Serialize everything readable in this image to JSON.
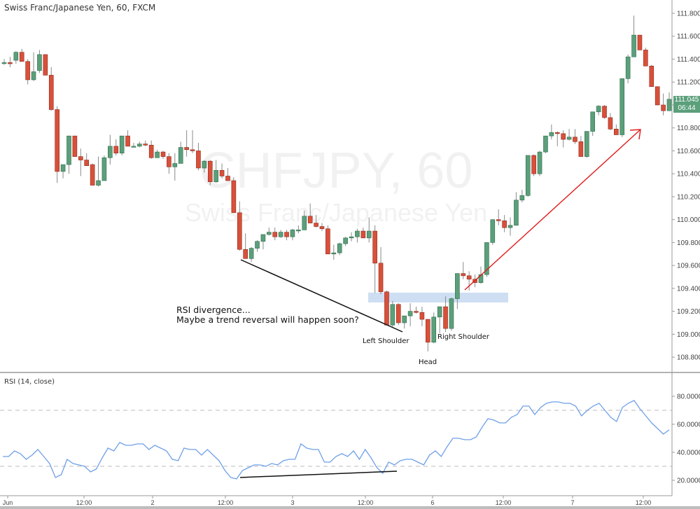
{
  "header": {
    "title": "Swiss Franc/Japanese Yen, 60, FXCM"
  },
  "watermark": {
    "symbol": "CHFJPY, 60",
    "name": "Swiss Franc/Japanese Yen"
  },
  "rsi_panel": {
    "title": "RSI (14, close)"
  },
  "price_tag": {
    "price": "111.045",
    "countdown": "06:44",
    "color": "#5b9f7b"
  },
  "annotations": {
    "divergence_line1": "RSI divergence...",
    "divergence_line2": "Maybe a trend reversal will happen soon?",
    "left_shoulder": "Left Shoulder",
    "head": "Head",
    "right_shoulder": "Right Shoulder"
  },
  "colors": {
    "up": "#5b9f7b",
    "down": "#d9503a",
    "rsi": "#6fa0e8",
    "arrow": "#e01a1a",
    "neckline_zone": "#c9dcf2"
  },
  "chart_data": [
    {
      "type": "candlestick",
      "title": "Swiss Franc/Japanese Yen, 60, FXCM",
      "xlabel": "",
      "ylabel": "",
      "ylim": [
        108.7,
        111.9
      ],
      "y_ticks": [
        "111.800",
        "111.600",
        "111.400",
        "111.200",
        "111.000",
        "110.800",
        "110.600",
        "110.400",
        "110.200",
        "110.000",
        "109.800",
        "109.600",
        "109.400",
        "109.200",
        "109.000",
        "108.800"
      ],
      "x_ticks": [
        "Jun",
        "12:00",
        "2",
        "12:00",
        "3",
        "12:00",
        "6",
        "12:00",
        "7",
        "12:00"
      ],
      "last_price": 111.045,
      "annotations": [
        "RSI divergence... Maybe a trend reversal will happen soon?",
        "Left Shoulder",
        "Head",
        "Right Shoulder"
      ],
      "candles_ohlc": [
        [
          111.37,
          111.4,
          111.35,
          111.37
        ],
        [
          111.37,
          111.42,
          111.33,
          111.36
        ],
        [
          111.39,
          111.47,
          111.36,
          111.46
        ],
        [
          111.46,
          111.49,
          111.38,
          111.38
        ],
        [
          111.38,
          111.4,
          111.18,
          111.22
        ],
        [
          111.22,
          111.46,
          111.21,
          111.29
        ],
        [
          111.3,
          111.48,
          111.28,
          111.44
        ],
        [
          111.44,
          111.44,
          111.26,
          111.26
        ],
        [
          111.26,
          111.33,
          110.95,
          110.96
        ],
        [
          110.96,
          110.99,
          110.32,
          110.42
        ],
        [
          110.42,
          110.48,
          110.36,
          110.48
        ],
        [
          110.48,
          110.73,
          110.4,
          110.73
        ],
        [
          110.73,
          110.71,
          110.55,
          110.55
        ],
        [
          110.55,
          110.62,
          110.38,
          110.52
        ],
        [
          110.52,
          110.58,
          110.48,
          110.47
        ],
        [
          110.48,
          110.49,
          110.3,
          110.3
        ],
        [
          110.3,
          110.55,
          110.29,
          110.34
        ],
        [
          110.34,
          110.56,
          110.35,
          110.54
        ],
        [
          110.54,
          110.74,
          110.48,
          110.64
        ],
        [
          110.64,
          110.7,
          110.56,
          110.58
        ],
        [
          110.58,
          110.73,
          110.56,
          110.73
        ],
        [
          110.73,
          110.78,
          110.69,
          110.64
        ],
        [
          110.64,
          110.67,
          110.63,
          110.64
        ],
        [
          110.64,
          110.68,
          110.63,
          110.66
        ],
        [
          110.66,
          110.69,
          110.64,
          110.65
        ],
        [
          110.65,
          110.69,
          110.53,
          110.54
        ],
        [
          110.54,
          110.61,
          110.54,
          110.59
        ],
        [
          110.59,
          110.6,
          110.53,
          110.55
        ],
        [
          110.55,
          110.58,
          110.4,
          110.46
        ],
        [
          110.46,
          110.58,
          110.34,
          110.49
        ],
        [
          110.49,
          110.68,
          110.49,
          110.63
        ],
        [
          110.63,
          110.78,
          110.55,
          110.61
        ],
        [
          110.61,
          110.78,
          110.58,
          110.6
        ],
        [
          110.6,
          110.67,
          110.43,
          110.45
        ],
        [
          110.45,
          110.52,
          110.41,
          110.51
        ],
        [
          110.51,
          110.52,
          110.3,
          110.33
        ],
        [
          110.33,
          110.52,
          110.32,
          110.43
        ],
        [
          110.43,
          110.49,
          110.36,
          110.38
        ],
        [
          110.38,
          110.45,
          110.35,
          110.34
        ],
        [
          110.34,
          110.37,
          110.06,
          110.06
        ],
        [
          110.06,
          110.16,
          109.73,
          109.74
        ],
        [
          109.74,
          109.88,
          109.66,
          109.66
        ],
        [
          109.66,
          109.76,
          109.63,
          109.75
        ],
        [
          109.75,
          109.82,
          109.72,
          109.81
        ],
        [
          109.81,
          109.85,
          109.74,
          109.87
        ],
        [
          109.87,
          109.93,
          109.86,
          109.89
        ],
        [
          109.89,
          109.93,
          109.82,
          109.85
        ],
        [
          109.85,
          109.91,
          109.84,
          109.89
        ],
        [
          109.89,
          109.91,
          109.82,
          109.85
        ],
        [
          109.85,
          109.92,
          109.82,
          109.91
        ],
        [
          109.91,
          109.95,
          109.88,
          109.91
        ],
        [
          109.91,
          110.08,
          109.91,
          110.03
        ],
        [
          110.03,
          110.14,
          109.97,
          109.97
        ],
        [
          109.97,
          110.04,
          109.93,
          109.94
        ],
        [
          109.94,
          109.97,
          109.9,
          109.92
        ],
        [
          109.92,
          109.95,
          109.7,
          109.7
        ],
        [
          109.7,
          109.78,
          109.65,
          109.71
        ],
        [
          109.71,
          109.8,
          109.69,
          109.79
        ],
        [
          109.79,
          109.85,
          109.77,
          109.84
        ],
        [
          109.84,
          109.89,
          109.81,
          109.85
        ],
        [
          109.85,
          109.92,
          109.8,
          109.9
        ],
        [
          109.9,
          109.93,
          109.84,
          109.84
        ],
        [
          109.84,
          110.02,
          109.8,
          109.9
        ],
        [
          109.9,
          109.95,
          109.36,
          109.62
        ],
        [
          109.62,
          109.76,
          109.35,
          109.37
        ],
        [
          109.37,
          109.38,
          109.08,
          109.08
        ],
        [
          109.08,
          109.29,
          109.06,
          109.26
        ],
        [
          109.26,
          109.27,
          109.08,
          109.1
        ],
        [
          109.1,
          109.14,
          109.05,
          109.16
        ],
        [
          109.16,
          109.27,
          109.07,
          109.2
        ],
        [
          109.2,
          109.24,
          109.18,
          109.19
        ],
        [
          109.19,
          109.24,
          109.07,
          109.13
        ],
        [
          109.13,
          109.11,
          108.85,
          108.93
        ],
        [
          108.93,
          109.19,
          108.92,
          109.15
        ],
        [
          109.15,
          109.23,
          109.01,
          109.24
        ],
        [
          109.24,
          109.33,
          109.02,
          109.05
        ],
        [
          109.05,
          109.32,
          109.03,
          109.31
        ],
        [
          109.31,
          109.38,
          109.22,
          109.53
        ],
        [
          109.53,
          109.63,
          109.48,
          109.51
        ],
        [
          109.51,
          109.55,
          109.38,
          109.48
        ],
        [
          109.48,
          109.52,
          109.41,
          109.45
        ],
        [
          109.45,
          109.59,
          109.44,
          109.52
        ],
        [
          109.52,
          109.71,
          109.5,
          109.8
        ],
        [
          109.8,
          110.0,
          109.78,
          110.0
        ],
        [
          110.0,
          110.09,
          109.95,
          109.99
        ],
        [
          109.99,
          110.04,
          109.89,
          109.93
        ],
        [
          109.93,
          110.02,
          109.86,
          109.95
        ],
        [
          109.95,
          110.24,
          109.95,
          110.17
        ],
        [
          110.17,
          110.26,
          110.15,
          110.21
        ],
        [
          110.21,
          110.52,
          110.2,
          110.56
        ],
        [
          110.56,
          110.57,
          110.38,
          110.4
        ],
        [
          110.4,
          110.6,
          110.38,
          110.59
        ],
        [
          110.59,
          110.7,
          110.58,
          110.73
        ],
        [
          110.73,
          110.83,
          110.7,
          110.76
        ],
        [
          110.76,
          110.77,
          110.64,
          110.75
        ],
        [
          110.75,
          110.78,
          110.63,
          110.7
        ],
        [
          110.7,
          110.79,
          110.69,
          110.72
        ],
        [
          110.72,
          110.79,
          110.66,
          110.68
        ],
        [
          110.68,
          110.73,
          110.55,
          110.55
        ],
        [
          110.55,
          110.75,
          110.54,
          110.77
        ],
        [
          110.77,
          110.93,
          110.73,
          110.94
        ],
        [
          110.94,
          111.0,
          110.91,
          110.99
        ],
        [
          110.99,
          111.0,
          110.88,
          110.89
        ],
        [
          110.89,
          110.93,
          110.78,
          110.79
        ],
        [
          110.79,
          110.83,
          110.74,
          110.74
        ],
        [
          110.74,
          111.23,
          110.72,
          111.23
        ],
        [
          111.23,
          111.44,
          111.19,
          111.42
        ],
        [
          111.42,
          111.78,
          111.42,
          111.61
        ],
        [
          111.61,
          111.61,
          111.48,
          111.48
        ],
        [
          111.48,
          111.5,
          111.34,
          111.34
        ],
        [
          111.34,
          111.35,
          111.16,
          111.16
        ],
        [
          111.16,
          111.14,
          111.0,
          111.0
        ],
        [
          111.0,
          111.1,
          110.91,
          110.95
        ],
        [
          110.95,
          111.11,
          110.95,
          111.05
        ]
      ]
    },
    {
      "type": "line",
      "title": "RSI (14, close)",
      "ylim": [
        15,
        88
      ],
      "y_ticks": [
        "80.0000",
        "60.0000",
        "40.0000",
        "20.0000"
      ],
      "bands": [
        70,
        30
      ],
      "series": [
        {
          "name": "RSI",
          "values": [
            37,
            37,
            41,
            39,
            35,
            38,
            42,
            37,
            32,
            22,
            24,
            35,
            32,
            31,
            30,
            26,
            28,
            36,
            43,
            41,
            47,
            45,
            45,
            46,
            46,
            42,
            45,
            43,
            41,
            35,
            34,
            43,
            42,
            42,
            38,
            42,
            38,
            34,
            27,
            22,
            21,
            27,
            29,
            31,
            31,
            30,
            32,
            31,
            34,
            35,
            35,
            46,
            43,
            42,
            42,
            33,
            33,
            37,
            39,
            37,
            41,
            35,
            42,
            36,
            29,
            25,
            33,
            31,
            34,
            35,
            35,
            33,
            31,
            38,
            41,
            37,
            44,
            50,
            50,
            49,
            49,
            51,
            58,
            64,
            63,
            61,
            61,
            65,
            67,
            73,
            73,
            67,
            72,
            75,
            76,
            76,
            75,
            75,
            73,
            66,
            70,
            73,
            75,
            70,
            65,
            62,
            72,
            75,
            77,
            71,
            66,
            61,
            57,
            53,
            56
          ]
        }
      ],
      "annotations": [
        "RSI higher-low trendline (divergence)"
      ]
    }
  ]
}
